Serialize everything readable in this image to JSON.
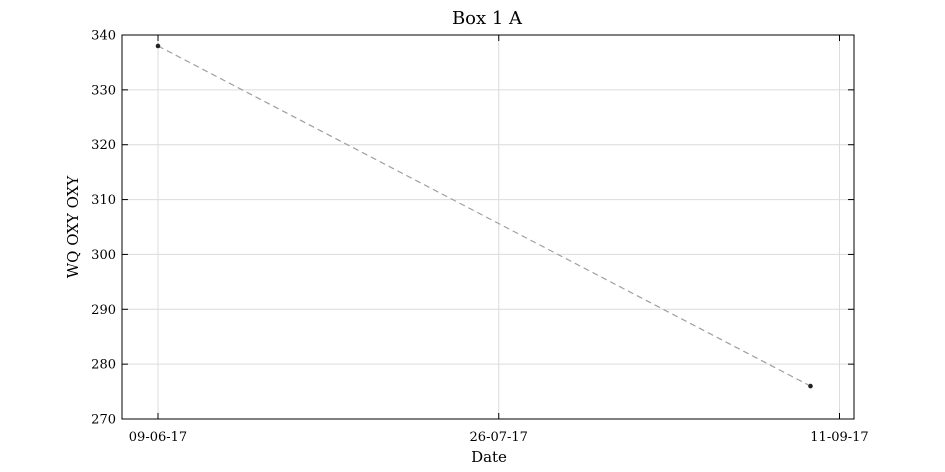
{
  "chart_data": {
    "type": "line",
    "title": "Box 1 A",
    "xlabel": "Date",
    "ylabel": "WQ OXY OXY",
    "x_axis_kind": "date",
    "xlim": [
      "2017-06-09",
      "2017-09-13"
    ],
    "ylim": [
      270,
      340
    ],
    "x_ticks": [
      {
        "date": "2017-06-09",
        "label": "09-06-17"
      },
      {
        "date": "2017-07-26",
        "label": "26-07-17"
      },
      {
        "date": "2017-09-11",
        "label": "11-09-17"
      }
    ],
    "y_ticks": [
      270,
      280,
      290,
      300,
      310,
      320,
      330,
      340
    ],
    "grid": true,
    "series": [
      {
        "line_style": "dashed",
        "line_color": "#a0a0a0",
        "marker_color": "#222222",
        "points": [
          {
            "x": "2017-06-09",
            "y": 338
          },
          {
            "x": "2017-09-07",
            "y": 276
          }
        ]
      }
    ]
  }
}
